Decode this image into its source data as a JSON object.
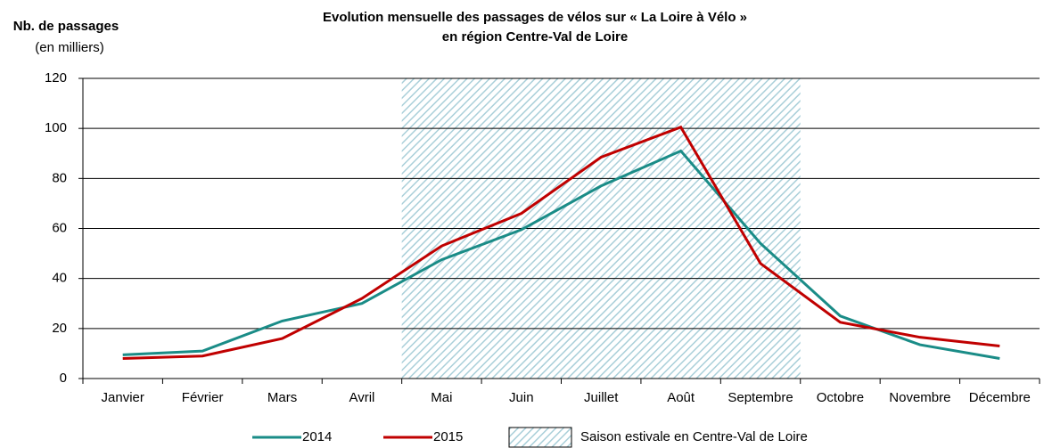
{
  "chart_data": {
    "type": "line",
    "title": [
      "Evolution mensuelle des passages de vélos sur « La Loire à Vélo »",
      "en région Centre-Val de Loire"
    ],
    "y_label": "Nb. de passages",
    "y_unit": "(en milliers)",
    "categories": [
      "Janvier",
      "Février",
      "Mars",
      "Avril",
      "Mai",
      "Juin",
      "Juillet",
      "Août",
      "Septembre",
      "Octobre",
      "Novembre",
      "Décembre"
    ],
    "series": [
      {
        "name": "2014",
        "color": "#1a8c87",
        "values": [
          9.5,
          11,
          23,
          30,
          47.5,
          59.5,
          77,
          91,
          54,
          25,
          13.5,
          8
        ]
      },
      {
        "name": "2015",
        "color": "#c00000",
        "values": [
          8,
          9,
          16,
          32,
          53,
          66,
          88.5,
          100.5,
          46,
          22.5,
          16.5,
          13
        ]
      }
    ],
    "shade": {
      "label": "Saison estivale en Centre-Val de Loire",
      "from": "Mai",
      "to": "Septembre",
      "color": "#a9cfd9"
    },
    "ylim": [
      0,
      120
    ],
    "yticks": [
      0,
      20,
      40,
      60,
      80,
      100,
      120
    ],
    "grid": true,
    "legend": "bottom"
  }
}
